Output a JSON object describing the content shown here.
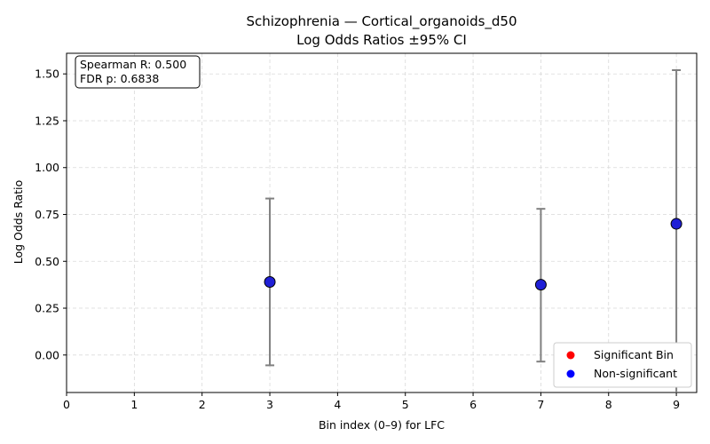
{
  "chart_data": {
    "type": "scatter",
    "title": "Schizophrenia — Cortical_organoids_d50",
    "subtitle": "Log Odds Ratios ±95% CI",
    "xlabel": "Bin index (0–9) for LFC",
    "ylabel": "Log Odds Ratio",
    "xlim": [
      0,
      9.3
    ],
    "ylim": [
      -0.2,
      1.61
    ],
    "xticks": [
      0,
      1,
      2,
      3,
      4,
      5,
      6,
      7,
      8,
      9
    ],
    "yticks": [
      0.0,
      0.25,
      0.5,
      0.75,
      1.0,
      1.25,
      1.5
    ],
    "ytick_labels": [
      "0.00",
      "0.25",
      "0.50",
      "0.75",
      "1.00",
      "1.25",
      "1.50"
    ],
    "grid": true,
    "points": [
      {
        "x": 3,
        "y": 0.39,
        "ci_low": -0.055,
        "ci_high": 0.835,
        "significant": false
      },
      {
        "x": 7,
        "y": 0.375,
        "ci_low": -0.035,
        "ci_high": 0.78,
        "significant": false
      },
      {
        "x": 9,
        "y": 0.7,
        "ci_low": -0.2,
        "ci_high": 1.52,
        "significant": false
      }
    ],
    "annotation": [
      "Spearman R: 0.500",
      "FDR p: 0.6838"
    ],
    "legend": {
      "position": "lower-right",
      "entries": [
        {
          "label": "Significant Bin",
          "color": "#ff0000"
        },
        {
          "label": "Non-significant",
          "color": "#0000ff"
        }
      ]
    },
    "colors": {
      "point_fill": "#1f1fd6",
      "point_edge": "#000000",
      "errorbar": "#808080",
      "grid": "#d9d9d9"
    }
  }
}
